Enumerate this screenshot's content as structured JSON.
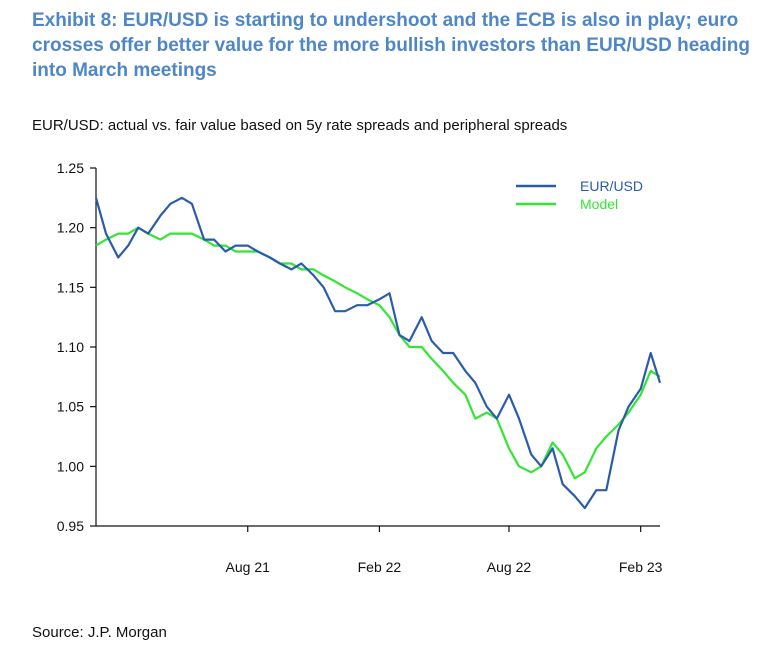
{
  "title": "Exhibit 8: EUR/USD is starting to undershoot and the ECB is also in play; euro crosses offer better value for the more bullish investors than EUR/USD heading into March meetings",
  "subtitle": "EUR/USD: actual vs. fair value based on 5y rate spreads and peripheral spreads",
  "source": "Source: J.P. Morgan",
  "colors": {
    "eurusd": "#2a5caa",
    "model": "#33e633",
    "title": "#4f86c6"
  },
  "chart_data": {
    "type": "line",
    "ylim": [
      0.95,
      1.25
    ],
    "yticks": [
      "1.25",
      "1.20",
      "1.15",
      "1.10",
      "1.05",
      "1.00",
      "0.95"
    ],
    "ytick_values": [
      1.25,
      1.2,
      1.15,
      1.1,
      1.05,
      1.0,
      0.95
    ],
    "xlim": [
      "2021-01-01",
      "2023-02-28"
    ],
    "xticks": [
      "Aug 21",
      "Feb 22",
      "Aug 22",
      "Feb 23"
    ],
    "xtick_dates": [
      "2021-08-01",
      "2022-02-01",
      "2022-08-01",
      "2023-02-01"
    ],
    "grid": false,
    "legend_position": "top-right",
    "series": [
      {
        "name": "EUR/USD",
        "x": [
          "2021-01-01",
          "2021-01-15",
          "2021-02-01",
          "2021-02-15",
          "2021-03-01",
          "2021-03-15",
          "2021-04-01",
          "2021-04-15",
          "2021-05-01",
          "2021-05-15",
          "2021-06-01",
          "2021-06-15",
          "2021-07-01",
          "2021-07-15",
          "2021-08-01",
          "2021-08-15",
          "2021-09-01",
          "2021-09-15",
          "2021-10-01",
          "2021-10-15",
          "2021-11-01",
          "2021-11-15",
          "2021-12-01",
          "2021-12-15",
          "2022-01-01",
          "2022-01-15",
          "2022-02-01",
          "2022-02-15",
          "2022-03-01",
          "2022-03-15",
          "2022-04-01",
          "2022-04-15",
          "2022-05-01",
          "2022-05-15",
          "2022-06-01",
          "2022-06-15",
          "2022-07-01",
          "2022-07-15",
          "2022-08-01",
          "2022-08-15",
          "2022-09-01",
          "2022-09-15",
          "2022-10-01",
          "2022-10-15",
          "2022-11-01",
          "2022-11-15",
          "2022-12-01",
          "2022-12-15",
          "2023-01-01",
          "2023-01-15",
          "2023-02-01",
          "2023-02-15",
          "2023-02-28"
        ],
        "y": [
          1.225,
          1.195,
          1.175,
          1.185,
          1.2,
          1.195,
          1.21,
          1.22,
          1.225,
          1.22,
          1.19,
          1.19,
          1.18,
          1.185,
          1.185,
          1.18,
          1.175,
          1.17,
          1.165,
          1.17,
          1.16,
          1.15,
          1.13,
          1.13,
          1.135,
          1.135,
          1.14,
          1.145,
          1.11,
          1.105,
          1.125,
          1.105,
          1.095,
          1.095,
          1.08,
          1.07,
          1.05,
          1.04,
          1.06,
          1.04,
          1.01,
          1.0,
          1.015,
          0.985,
          0.975,
          0.965,
          0.98,
          0.98,
          1.03,
          1.05,
          1.065,
          1.095,
          1.07
        ]
      },
      {
        "name": "Model",
        "x": [
          "2021-01-01",
          "2021-01-15",
          "2021-02-01",
          "2021-02-15",
          "2021-03-01",
          "2021-03-15",
          "2021-04-01",
          "2021-04-15",
          "2021-05-01",
          "2021-05-15",
          "2021-06-01",
          "2021-06-15",
          "2021-07-01",
          "2021-07-15",
          "2021-08-01",
          "2021-08-15",
          "2021-09-01",
          "2021-09-15",
          "2021-10-01",
          "2021-10-15",
          "2021-11-01",
          "2021-11-15",
          "2021-12-01",
          "2021-12-15",
          "2022-01-01",
          "2022-01-15",
          "2022-02-01",
          "2022-02-15",
          "2022-03-01",
          "2022-03-15",
          "2022-04-01",
          "2022-04-15",
          "2022-05-01",
          "2022-05-15",
          "2022-06-01",
          "2022-06-15",
          "2022-07-01",
          "2022-07-15",
          "2022-08-01",
          "2022-08-15",
          "2022-09-01",
          "2022-09-15",
          "2022-10-01",
          "2022-10-15",
          "2022-11-01",
          "2022-11-15",
          "2022-12-01",
          "2022-12-15",
          "2023-01-01",
          "2023-01-15",
          "2023-02-01",
          "2023-02-15",
          "2023-02-28"
        ],
        "y": [
          1.185,
          1.19,
          1.195,
          1.195,
          1.2,
          1.195,
          1.19,
          1.195,
          1.195,
          1.195,
          1.19,
          1.185,
          1.185,
          1.18,
          1.18,
          1.18,
          1.175,
          1.17,
          1.17,
          1.165,
          1.165,
          1.16,
          1.155,
          1.15,
          1.145,
          1.14,
          1.135,
          1.125,
          1.11,
          1.1,
          1.1,
          1.09,
          1.08,
          1.07,
          1.06,
          1.04,
          1.045,
          1.04,
          1.015,
          1.0,
          0.995,
          1.0,
          1.02,
          1.01,
          0.99,
          0.995,
          1.015,
          1.025,
          1.035,
          1.045,
          1.06,
          1.08,
          1.075
        ]
      }
    ]
  }
}
